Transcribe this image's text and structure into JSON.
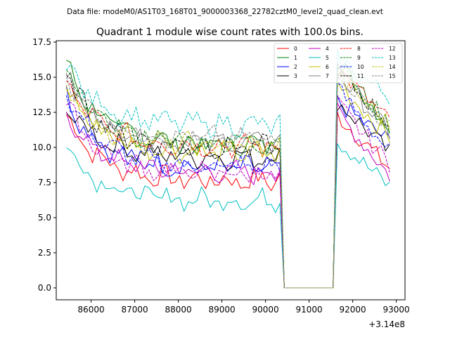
{
  "chart_data": {
    "type": "line",
    "suptitle": "Data file: modeM0/AS1T03_168T01_9000003368_22782cztM0_level2_quad_clean.evt",
    "title": "Quadrant 1 module wise count rates with 100.0s bins.",
    "xlabel": "",
    "ylabel": "",
    "x_offset_label": "+3.14e8",
    "xlim": [
      85200,
      93200
    ],
    "ylim": [
      -0.85,
      17.6
    ],
    "xticks": [
      86000,
      87000,
      88000,
      89000,
      90000,
      91000,
      92000,
      93000
    ],
    "xtick_labels": [
      "86000",
      "87000",
      "88000",
      "89000",
      "90000",
      "91000",
      "92000",
      "93000"
    ],
    "yticks": [
      0.0,
      2.5,
      5.0,
      7.5,
      10.0,
      12.5,
      15.0,
      17.5
    ],
    "ytick_labels": [
      "0.0",
      "2.5",
      "5.0",
      "7.5",
      "10.0",
      "12.5",
      "15.0",
      "17.5"
    ],
    "legend_position": "top-right",
    "gap": {
      "x_start": 90430,
      "x_end": 91550,
      "last_before": 90330,
      "first_after": 91650
    },
    "seg1": {
      "x_start": 85430,
      "step": 100,
      "count": 50
    },
    "seg2": {
      "x_start": 91650,
      "step": 100,
      "count": 13
    },
    "series": [
      {
        "name": "0",
        "color": "#ff0000",
        "dash": "solid",
        "start": 12.3,
        "plateau": 7.6,
        "post_peak": 12.3,
        "post_end": 8.5
      },
      {
        "name": "1",
        "color": "#008000",
        "dash": "solid",
        "start": 16.0,
        "plateau": 10.2,
        "post_peak": 16.2,
        "post_end": 11.4
      },
      {
        "name": "2",
        "color": "#0000ff",
        "dash": "solid",
        "start": 13.7,
        "plateau": 8.5,
        "post_peak": 13.2,
        "post_end": 10.4
      },
      {
        "name": "3",
        "color": "#000000",
        "dash": "solid",
        "start": 13.0,
        "plateau": 9.3,
        "post_peak": 13.3,
        "post_end": 9.6
      },
      {
        "name": "4",
        "color": "#bf00bf",
        "dash": "solid",
        "start": 12.4,
        "plateau": 8.2,
        "post_peak": 12.5,
        "post_end": 8.0
      },
      {
        "name": "5",
        "color": "#00bfbf",
        "dash": "solid",
        "start": 10.2,
        "plateau": 6.2,
        "post_peak": 10.5,
        "post_end": 7.2
      },
      {
        "name": "6",
        "color": "#bfbf00",
        "dash": "solid",
        "start": 14.3,
        "plateau": 9.6,
        "post_peak": 14.6,
        "post_end": 10.7
      },
      {
        "name": "7",
        "color": "#808080",
        "dash": "solid",
        "start": 15.0,
        "plateau": 10.3,
        "post_peak": 15.3,
        "post_end": 11.0
      },
      {
        "name": "8",
        "color": "#ff0000",
        "dash": "dashed",
        "start": 14.6,
        "plateau": 10.1,
        "post_peak": 15.6,
        "post_end": 11.8
      },
      {
        "name": "9",
        "color": "#008000",
        "dash": "dashed",
        "start": 15.5,
        "plateau": 10.3,
        "post_peak": 16.0,
        "post_end": 11.5
      },
      {
        "name": "10",
        "color": "#0000ff",
        "dash": "dashed",
        "start": 14.0,
        "plateau": 8.6,
        "post_peak": 14.2,
        "post_end": 9.7
      },
      {
        "name": "11",
        "color": "#000000",
        "dash": "dashed",
        "start": 15.2,
        "plateau": 10.0,
        "post_peak": 15.4,
        "post_end": 11.7
      },
      {
        "name": "12",
        "color": "#bf00bf",
        "dash": "dashed",
        "start": 13.2,
        "plateau": 8.1,
        "post_peak": 13.1,
        "post_end": 8.8
      },
      {
        "name": "13",
        "color": "#00bfbf",
        "dash": "dashed",
        "start": 16.0,
        "plateau": 11.6,
        "post_peak": 16.3,
        "post_end": 13.6
      },
      {
        "name": "14",
        "color": "#bfbf00",
        "dash": "dashed",
        "start": 14.2,
        "plateau": 10.1,
        "post_peak": 15.1,
        "post_end": 11.6
      },
      {
        "name": "15",
        "color": "#808080",
        "dash": "dashed",
        "start": 15.1,
        "plateau": 10.6,
        "post_peak": 15.4,
        "post_end": 11.3
      }
    ]
  }
}
